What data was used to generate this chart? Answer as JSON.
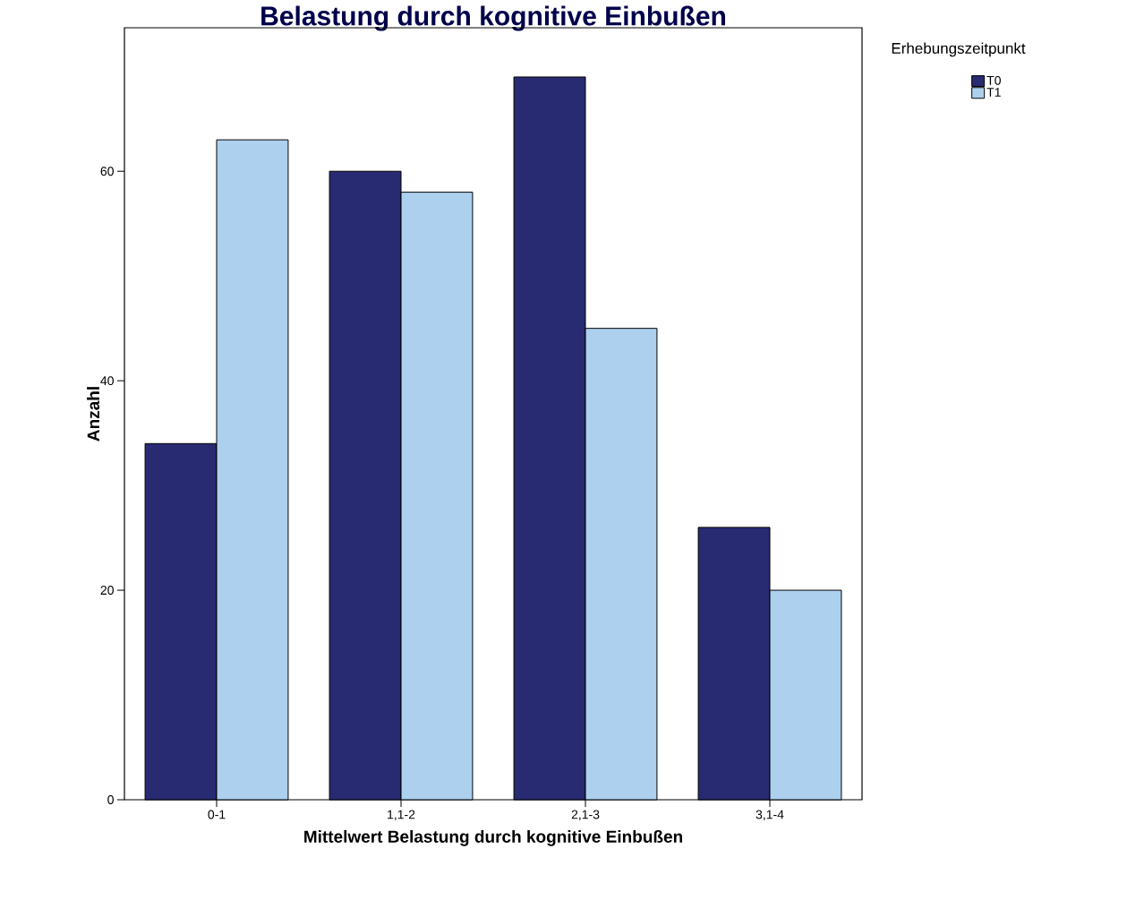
{
  "chart_data": {
    "type": "bar",
    "title": "Belastung durch kognitive Einbußen",
    "xlabel": "Mittelwert Belastung durch kognitive Einbußen",
    "ylabel": "Anzahl",
    "legend_title": "Erhebungszeitpunkt",
    "categories": [
      "0-1",
      "1,1-2",
      "2,1-3",
      "3,1-4"
    ],
    "series": [
      {
        "name": "T0",
        "color": "#282a72",
        "values": [
          34,
          60,
          69,
          26
        ]
      },
      {
        "name": "T1",
        "color": "#acd0ee",
        "values": [
          63,
          58,
          45,
          20
        ]
      }
    ],
    "ylim": [
      0,
      73.7
    ],
    "yticks": [
      0,
      20,
      40,
      60
    ],
    "grid": false,
    "legend": "top right"
  }
}
